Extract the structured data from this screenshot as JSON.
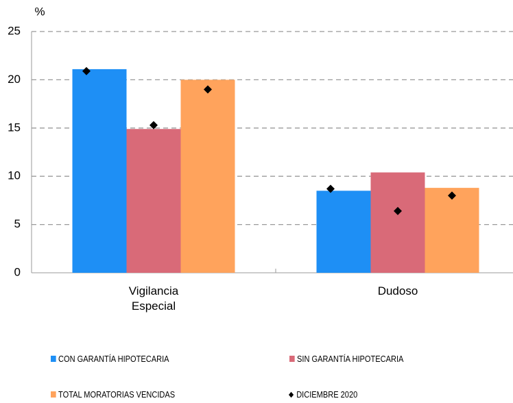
{
  "chart_data": {
    "type": "bar",
    "y_label": "%",
    "categories": [
      "Vigilancia Especial",
      "Dudoso"
    ],
    "series": [
      {
        "name": "CON GARANTÍA HIPOTECARIA",
        "color": "#1e8ff5",
        "values": [
          21.1,
          8.5
        ]
      },
      {
        "name": "SIN GARANTÍA HIPOTECARIA",
        "color": "#d96a78",
        "values": [
          14.9,
          10.4
        ]
      },
      {
        "name": "TOTAL MORATORIAS VENCIDAS",
        "color": "#ffa35c",
        "values": [
          20.0,
          8.8
        ]
      }
    ],
    "markers": {
      "name": "DICIEMBRE 2020",
      "color": "#000000",
      "values": [
        [
          20.9,
          15.3,
          19.0
        ],
        [
          8.7,
          6.4,
          8.0
        ]
      ]
    },
    "ylim": [
      0,
      25
    ],
    "yticks": [
      0,
      5,
      10,
      15,
      20,
      25
    ],
    "grid": true
  }
}
